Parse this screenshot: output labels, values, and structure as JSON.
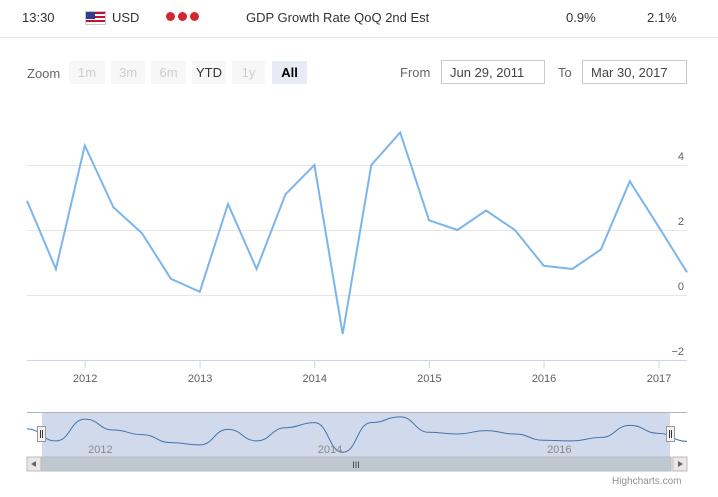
{
  "event": {
    "time": "13:30",
    "currency": "USD",
    "name": "GDP Growth Rate QoQ 2nd Est",
    "actual": "0.9%",
    "forecast": "2.1%",
    "flag_icon": "us-flag-icon",
    "importance_icon": "three-dots-high-importance-icon",
    "importance_color": "#d0282e"
  },
  "range_selector": {
    "zoom_label": "Zoom",
    "buttons": [
      "1m",
      "3m",
      "6m",
      "YTD",
      "1y",
      "All"
    ],
    "active": "All",
    "from_label": "From",
    "from_value": "Jun 29, 2011",
    "to_label": "To",
    "to_value": "Mar 30, 2017"
  },
  "navigator": {
    "scrollbar_grip": "III",
    "left_arrow_icon": "chevron-left-icon",
    "right_arrow_icon": "chevron-right-icon",
    "handle_icon": "navigator-handle-icon",
    "x_labels": [
      "2012",
      "2014",
      "2016"
    ]
  },
  "credits": "Highcharts.com",
  "chart_data": {
    "type": "line",
    "line_color": "#7cb5ec",
    "x": [
      "2011-06-30",
      "2011-09-30",
      "2011-12-31",
      "2012-03-31",
      "2012-06-30",
      "2012-09-30",
      "2012-12-31",
      "2013-03-31",
      "2013-06-30",
      "2013-09-30",
      "2013-12-31",
      "2014-03-31",
      "2014-06-30",
      "2014-09-30",
      "2014-12-31",
      "2015-03-31",
      "2015-06-30",
      "2015-09-30",
      "2015-12-31",
      "2016-03-31",
      "2016-06-30",
      "2016-09-30",
      "2016-12-31",
      "2017-03-31"
    ],
    "values": [
      2.9,
      0.8,
      4.6,
      2.7,
      1.9,
      0.5,
      0.1,
      2.8,
      0.8,
      3.1,
      4.0,
      -1.2,
      4.0,
      5.0,
      2.3,
      2.0,
      2.6,
      2.0,
      0.9,
      0.8,
      1.4,
      3.5,
      2.1,
      0.7
    ],
    "y_ticks": [
      "4",
      "2",
      "0",
      "−2"
    ],
    "x_ticks": [
      "2012",
      "2013",
      "2014",
      "2015",
      "2016",
      "2017"
    ],
    "ylim": [
      -2,
      6
    ],
    "grid": true
  }
}
